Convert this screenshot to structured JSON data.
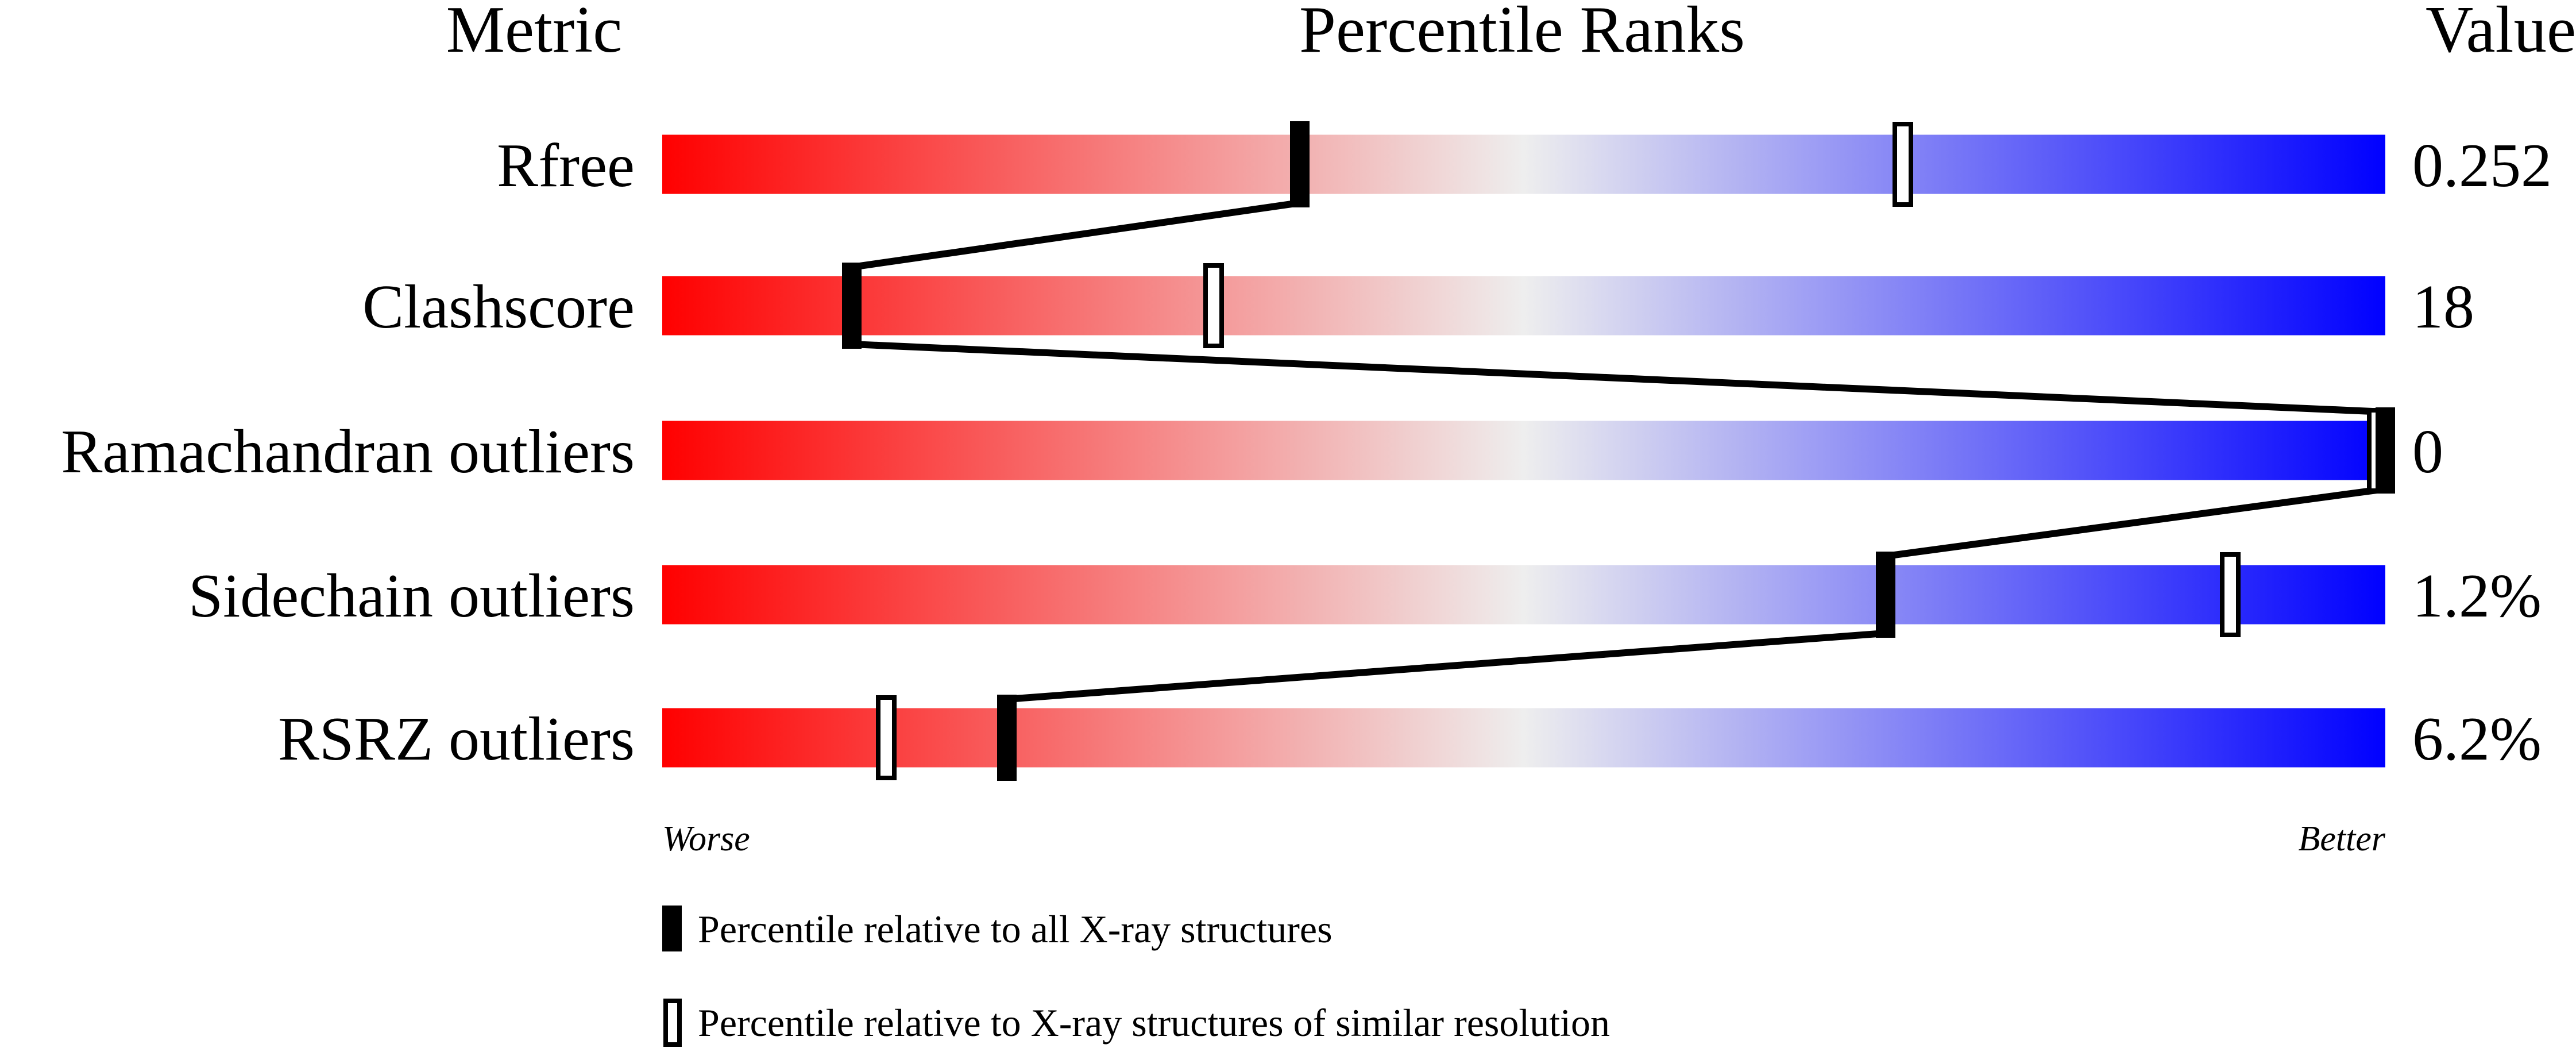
{
  "chart_data": {
    "type": "bar",
    "headers": {
      "metric": "Metric",
      "ranks": "Percentile Ranks",
      "value": "Value"
    },
    "xlim": [
      0,
      100
    ],
    "axis_labels": {
      "left": "Worse",
      "right": "Better"
    },
    "gradient_colors": {
      "worse": "#ff0000",
      "middle": "#eeeeee",
      "better": "#0000ff"
    },
    "series": [
      {
        "name": "Percentile relative to all X-ray structures",
        "marker": "filled"
      },
      {
        "name": "Percentile relative to X-ray structures of similar resolution",
        "marker": "open"
      }
    ],
    "rows": [
      {
        "metric": "Rfree",
        "value": "0.252",
        "all": 37,
        "similar": 72
      },
      {
        "metric": "Clashscore",
        "value": "18",
        "all": 11,
        "similar": 32
      },
      {
        "metric": "Ramachandran outliers",
        "value": "0",
        "all": 100,
        "similar": 100
      },
      {
        "metric": "Sidechain outliers",
        "value": "1.2%",
        "all": 71,
        "similar": 91
      },
      {
        "metric": "RSRZ outliers",
        "value": "6.2%",
        "all": 20,
        "similar": 13
      }
    ]
  }
}
